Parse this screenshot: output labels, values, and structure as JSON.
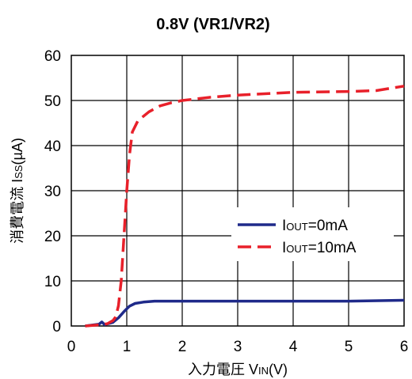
{
  "chart_data": {
    "type": "line",
    "title": "0.8V (VR1/VR2)",
    "xlabel": {
      "main": "入力電圧 V",
      "sub": "IN",
      "suffix": "(V)"
    },
    "ylabel": {
      "main": "消費電流 I",
      "sub": "SS",
      "suffix": "(µA)"
    },
    "xlim": [
      0,
      6
    ],
    "ylim": [
      0,
      60
    ],
    "x_ticks": [
      0,
      1,
      2,
      3,
      4,
      5,
      6
    ],
    "y_ticks": [
      0,
      10,
      20,
      30,
      40,
      50,
      60
    ],
    "grid": true,
    "legend_position": "middle-right",
    "series": [
      {
        "name": "IOUT=0mA",
        "legend": {
          "main": "I",
          "sub": "OUT",
          "suffix": "=0mA"
        },
        "color": "#1f2a8a",
        "dash": "solid",
        "points": [
          [
            0.25,
            0
          ],
          [
            0.5,
            0.4
          ],
          [
            0.55,
            0.9
          ],
          [
            0.6,
            0.3
          ],
          [
            0.75,
            0.8
          ],
          [
            0.85,
            1.8
          ],
          [
            0.95,
            3.2
          ],
          [
            1.05,
            4.4
          ],
          [
            1.15,
            5.0
          ],
          [
            1.3,
            5.3
          ],
          [
            1.5,
            5.5
          ],
          [
            2.0,
            5.5
          ],
          [
            3.0,
            5.5
          ],
          [
            4.0,
            5.5
          ],
          [
            5.0,
            5.5
          ],
          [
            6.0,
            5.7
          ]
        ]
      },
      {
        "name": "IOUT=10mA",
        "legend": {
          "main": "I",
          "sub": "OUT",
          "suffix": "=10mA"
        },
        "color": "#e8202a",
        "dash": "dashed",
        "points": [
          [
            0.25,
            0
          ],
          [
            0.55,
            0.3
          ],
          [
            0.65,
            0.5
          ],
          [
            0.75,
            1.2
          ],
          [
            0.8,
            2.0
          ],
          [
            0.85,
            4.5
          ],
          [
            0.9,
            10
          ],
          [
            0.95,
            20
          ],
          [
            1.0,
            30
          ],
          [
            1.05,
            38
          ],
          [
            1.1,
            43
          ],
          [
            1.2,
            45.5
          ],
          [
            1.4,
            47.5
          ],
          [
            1.6,
            48.8
          ],
          [
            1.8,
            49.5
          ],
          [
            2.0,
            50.0
          ],
          [
            2.5,
            50.7
          ],
          [
            3.0,
            51.2
          ],
          [
            4.0,
            51.8
          ],
          [
            5.0,
            52.0
          ],
          [
            5.5,
            52.2
          ],
          [
            6.0,
            53.2
          ]
        ]
      }
    ]
  }
}
